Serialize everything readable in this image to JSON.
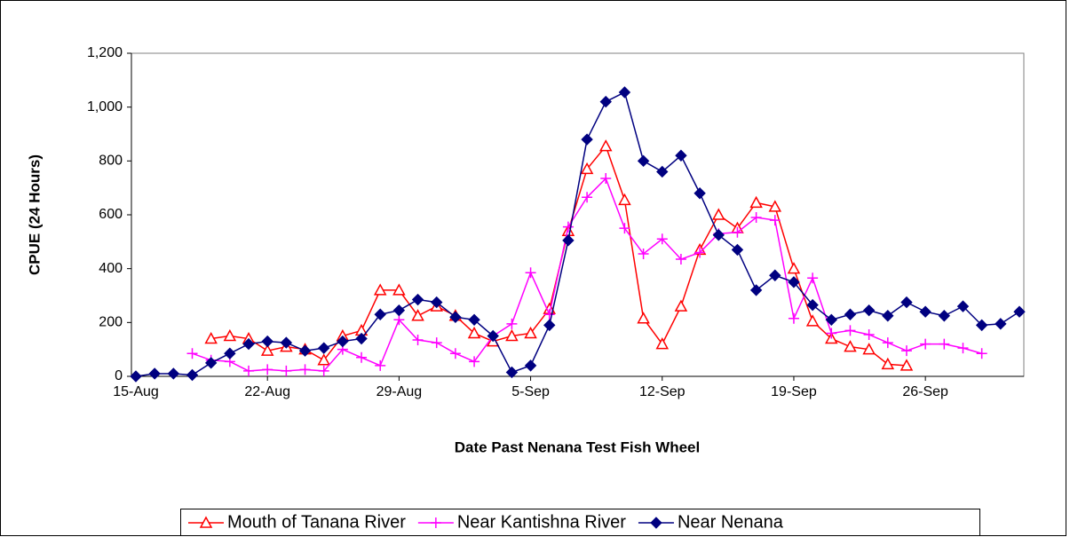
{
  "chart_data": {
    "type": "line",
    "x_label": "Date Past Nenana Test Fish Wheel",
    "y_label": "CPUE (24 Hours)",
    "categories": [
      "15-Aug",
      null,
      null,
      null,
      null,
      null,
      null,
      "22-Aug",
      null,
      null,
      null,
      null,
      null,
      null,
      "29-Aug",
      null,
      null,
      null,
      null,
      null,
      null,
      "5-Sep",
      null,
      null,
      null,
      null,
      null,
      null,
      "12-Sep",
      null,
      null,
      null,
      null,
      null,
      null,
      "19-Sep",
      null,
      null,
      null,
      null,
      null,
      null,
      "26-Sep",
      null,
      null,
      null,
      null,
      null
    ],
    "ylim": [
      0,
      1200
    ],
    "yticks": [
      0,
      200,
      400,
      600,
      800,
      {
        "value": 1000,
        "label": "1,000"
      },
      {
        "value": 1200,
        "label": "1,200"
      }
    ],
    "legend": "bottom",
    "series": [
      {
        "name": "Mouth of Tanana River",
        "color": "#ff0000",
        "marker": "triangle",
        "values": [
          null,
          null,
          null,
          null,
          140,
          150,
          140,
          95,
          110,
          100,
          60,
          150,
          170,
          320,
          320,
          225,
          260,
          225,
          160,
          130,
          150,
          160,
          250,
          540,
          770,
          855,
          655,
          215,
          120,
          260,
          470,
          600,
          550,
          645,
          630,
          400,
          205,
          140,
          110,
          100,
          45,
          40,
          null,
          null,
          null,
          null,
          null,
          null
        ]
      },
      {
        "name": "Near Kantishna River",
        "color": "#ff00ff",
        "marker": "plus",
        "values": [
          null,
          null,
          null,
          85,
          60,
          55,
          20,
          25,
          20,
          25,
          20,
          100,
          70,
          40,
          210,
          135,
          125,
          85,
          55,
          150,
          195,
          385,
          230,
          555,
          665,
          735,
          550,
          455,
          510,
          435,
          460,
          530,
          535,
          590,
          580,
          215,
          365,
          160,
          170,
          155,
          125,
          95,
          120,
          120,
          105,
          85,
          null,
          null
        ]
      },
      {
        "name": "Near Nenana",
        "color": "#000080",
        "marker": "diamond",
        "values": [
          0,
          10,
          10,
          5,
          50,
          85,
          120,
          130,
          125,
          95,
          105,
          130,
          140,
          230,
          245,
          285,
          275,
          220,
          210,
          150,
          15,
          40,
          190,
          505,
          880,
          1020,
          1055,
          800,
          760,
          820,
          680,
          525,
          470,
          320,
          375,
          350,
          265,
          210,
          230,
          245,
          225,
          275,
          240,
          225,
          260,
          190,
          195,
          240
        ]
      }
    ]
  }
}
